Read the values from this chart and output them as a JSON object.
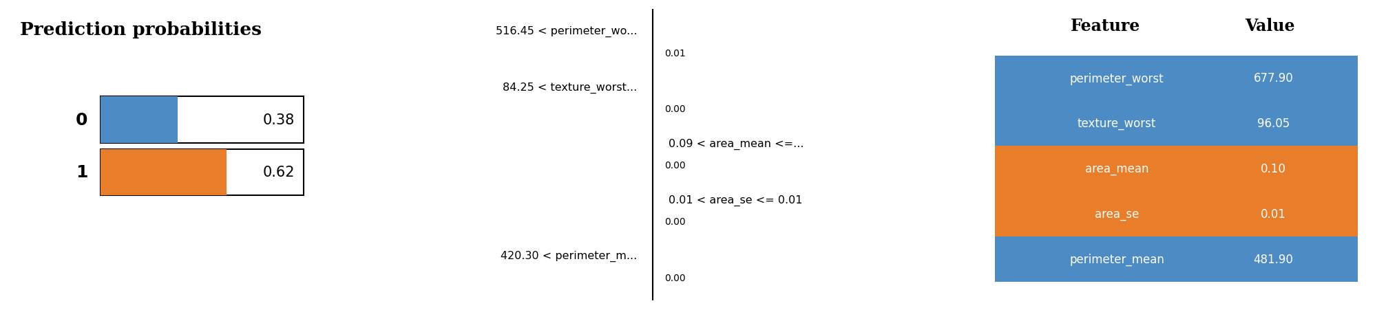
{
  "title_prob": "Prediction probabilities",
  "classes": [
    "0",
    "1"
  ],
  "probs": [
    0.38,
    0.62
  ],
  "prob_colors": [
    "#4c8bc4",
    "#e87d2a"
  ],
  "bar_title_color_0": "#4c8bc4",
  "bar_title_color_1": "#e87d2a",
  "middle_features": [
    {
      "label": "516.45 < perimeter_wo...",
      "value": "0.01",
      "side": "left"
    },
    {
      "label": "84.25 < texture_worst...",
      "value": "0.00",
      "side": "left"
    },
    {
      "label": "0.09 < area_mean <=...",
      "value": "0.00",
      "side": "right"
    },
    {
      "label": "0.01 < area_se <= 0.01",
      "value": "0.00",
      "side": "right"
    },
    {
      "label": "420.30 < perimeter_m...",
      "value": "0.00",
      "side": "left"
    }
  ],
  "table_headers": [
    "Feature",
    "Value"
  ],
  "table_rows": [
    [
      "perimeter_worst",
      "677.90"
    ],
    [
      "texture_worst",
      "96.05"
    ],
    [
      "area_mean",
      "0.10"
    ],
    [
      "area_se",
      "0.01"
    ],
    [
      "perimeter_mean",
      "481.90"
    ]
  ],
  "table_row_colors": [
    "#4c8bc4",
    "#4c8bc4",
    "#e87d2a",
    "#e87d2a",
    "#4c8bc4"
  ],
  "table_text_color": "#ffffff",
  "bg_color": "#ffffff"
}
